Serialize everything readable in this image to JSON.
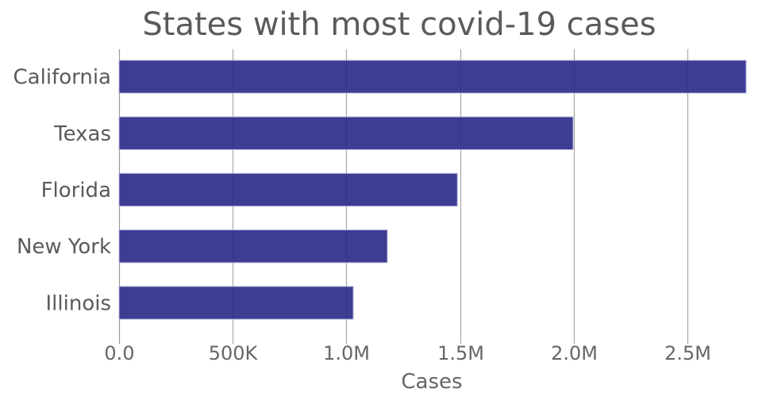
{
  "chart_data": {
    "type": "bar",
    "orientation": "horizontal",
    "title": "States with most covid-19 cases",
    "xlabel": "Cases",
    "ylabel": "",
    "categories": [
      "California",
      "Texas",
      "Florida",
      "New York",
      "Illinois"
    ],
    "values": [
      2758000,
      1997000,
      1488000,
      1180000,
      1030000
    ],
    "xlim": [
      0,
      2758000
    ],
    "xticks": [
      0,
      500000,
      1000000,
      1500000,
      2000000,
      2500000
    ],
    "xtick_labels": [
      "0.0",
      "500K",
      "1.0M",
      "1.5M",
      "2.0M",
      "2.5M"
    ],
    "grid": true,
    "bar_color": "#2b2d8a",
    "legend": "none"
  }
}
